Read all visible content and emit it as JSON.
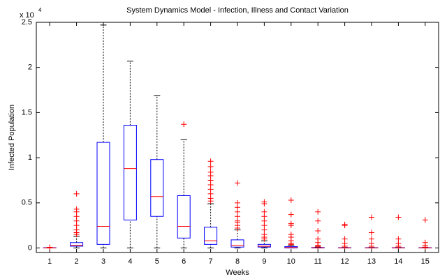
{
  "chart_data": {
    "type": "box",
    "title": "System Dynamics Model - Infection, Illness and Contact Variation",
    "xlabel": "Weeks",
    "ylabel": "Infected Population",
    "multiplier": "x 10",
    "multiplier_exponent": "4",
    "categories": [
      "1",
      "2",
      "3",
      "4",
      "5",
      "6",
      "7",
      "8",
      "9",
      "10",
      "11",
      "12",
      "13",
      "14",
      "15"
    ],
    "box_color": "#0000ff",
    "median_color": "#ff0000",
    "whisker_color": "#000000",
    "outlier_color": "#ff0000",
    "ylim": [
      -0.05,
      2.5
    ],
    "yticks": [
      0,
      0.5,
      1,
      1.5,
      2,
      2.5
    ],
    "boxes": [
      {
        "min": 0,
        "q1": 0,
        "median": 0,
        "q3": 0.003,
        "max": 0.005,
        "outliers": [
          0.008
        ]
      },
      {
        "min": 0,
        "q1": 0.02,
        "median": 0.03,
        "q3": 0.06,
        "max": 0.13,
        "outliers": [
          0.6,
          0.43,
          0.4,
          0.35,
          0.3,
          0.25,
          0.2,
          0.17,
          0.15
        ]
      },
      {
        "min": 0,
        "q1": 0.04,
        "median": 0.24,
        "q3": 1.17,
        "max": 2.47,
        "outliers": []
      },
      {
        "min": 0,
        "q1": 0.31,
        "median": 0.88,
        "q3": 1.36,
        "max": 2.07,
        "outliers": []
      },
      {
        "min": 0,
        "q1": 0.35,
        "median": 0.57,
        "q3": 0.98,
        "max": 1.69,
        "outliers": []
      },
      {
        "min": 0,
        "q1": 0.11,
        "median": 0.24,
        "q3": 0.58,
        "max": 1.2,
        "outliers": [
          1.37
        ]
      },
      {
        "min": 0,
        "q1": 0.04,
        "median": 0.08,
        "q3": 0.23,
        "max": 0.49,
        "outliers": [
          0.96,
          0.9,
          0.84,
          0.8,
          0.75,
          0.7,
          0.65,
          0.6,
          0.55,
          0.52
        ]
      },
      {
        "min": 0,
        "q1": 0.01,
        "median": 0.03,
        "q3": 0.09,
        "max": 0.2,
        "outliers": [
          0.72,
          0.5,
          0.45,
          0.4,
          0.35,
          0.3,
          0.28,
          0.25,
          0.22
        ]
      },
      {
        "min": 0,
        "q1": 0.01,
        "median": 0.02,
        "q3": 0.04,
        "max": 0.08,
        "outliers": [
          0.51,
          0.49,
          0.4,
          0.35,
          0.3,
          0.25,
          0.2,
          0.15,
          0.12,
          0.1
        ]
      },
      {
        "min": 0,
        "q1": 0,
        "median": 0.005,
        "q3": 0.015,
        "max": 0.03,
        "outliers": [
          0.53,
          0.37,
          0.27,
          0.25,
          0.15,
          0.12,
          0.08,
          0.05,
          0.04
        ]
      },
      {
        "min": 0,
        "q1": 0,
        "median": 0.002,
        "q3": 0.005,
        "max": 0.01,
        "outliers": [
          0.4,
          0.3,
          0.19,
          0.1,
          0.06,
          0.03,
          0.02
        ]
      },
      {
        "min": 0,
        "q1": 0,
        "median": 0.001,
        "q3": 0.003,
        "max": 0.006,
        "outliers": [
          0.26,
          0.25,
          0.1,
          0.05,
          0.02
        ]
      },
      {
        "min": 0,
        "q1": 0,
        "median": 0.001,
        "q3": 0.003,
        "max": 0.006,
        "outliers": [
          0.34,
          0.17,
          0.1,
          0.05,
          0.02
        ]
      },
      {
        "min": 0,
        "q1": 0,
        "median": 0.001,
        "q3": 0.003,
        "max": 0.006,
        "outliers": [
          0.34,
          0.1,
          0.05,
          0.02
        ]
      },
      {
        "min": 0,
        "q1": 0,
        "median": 0.001,
        "q3": 0.003,
        "max": 0.006,
        "outliers": [
          0.31,
          0.06,
          0.03,
          0.01
        ]
      }
    ]
  }
}
